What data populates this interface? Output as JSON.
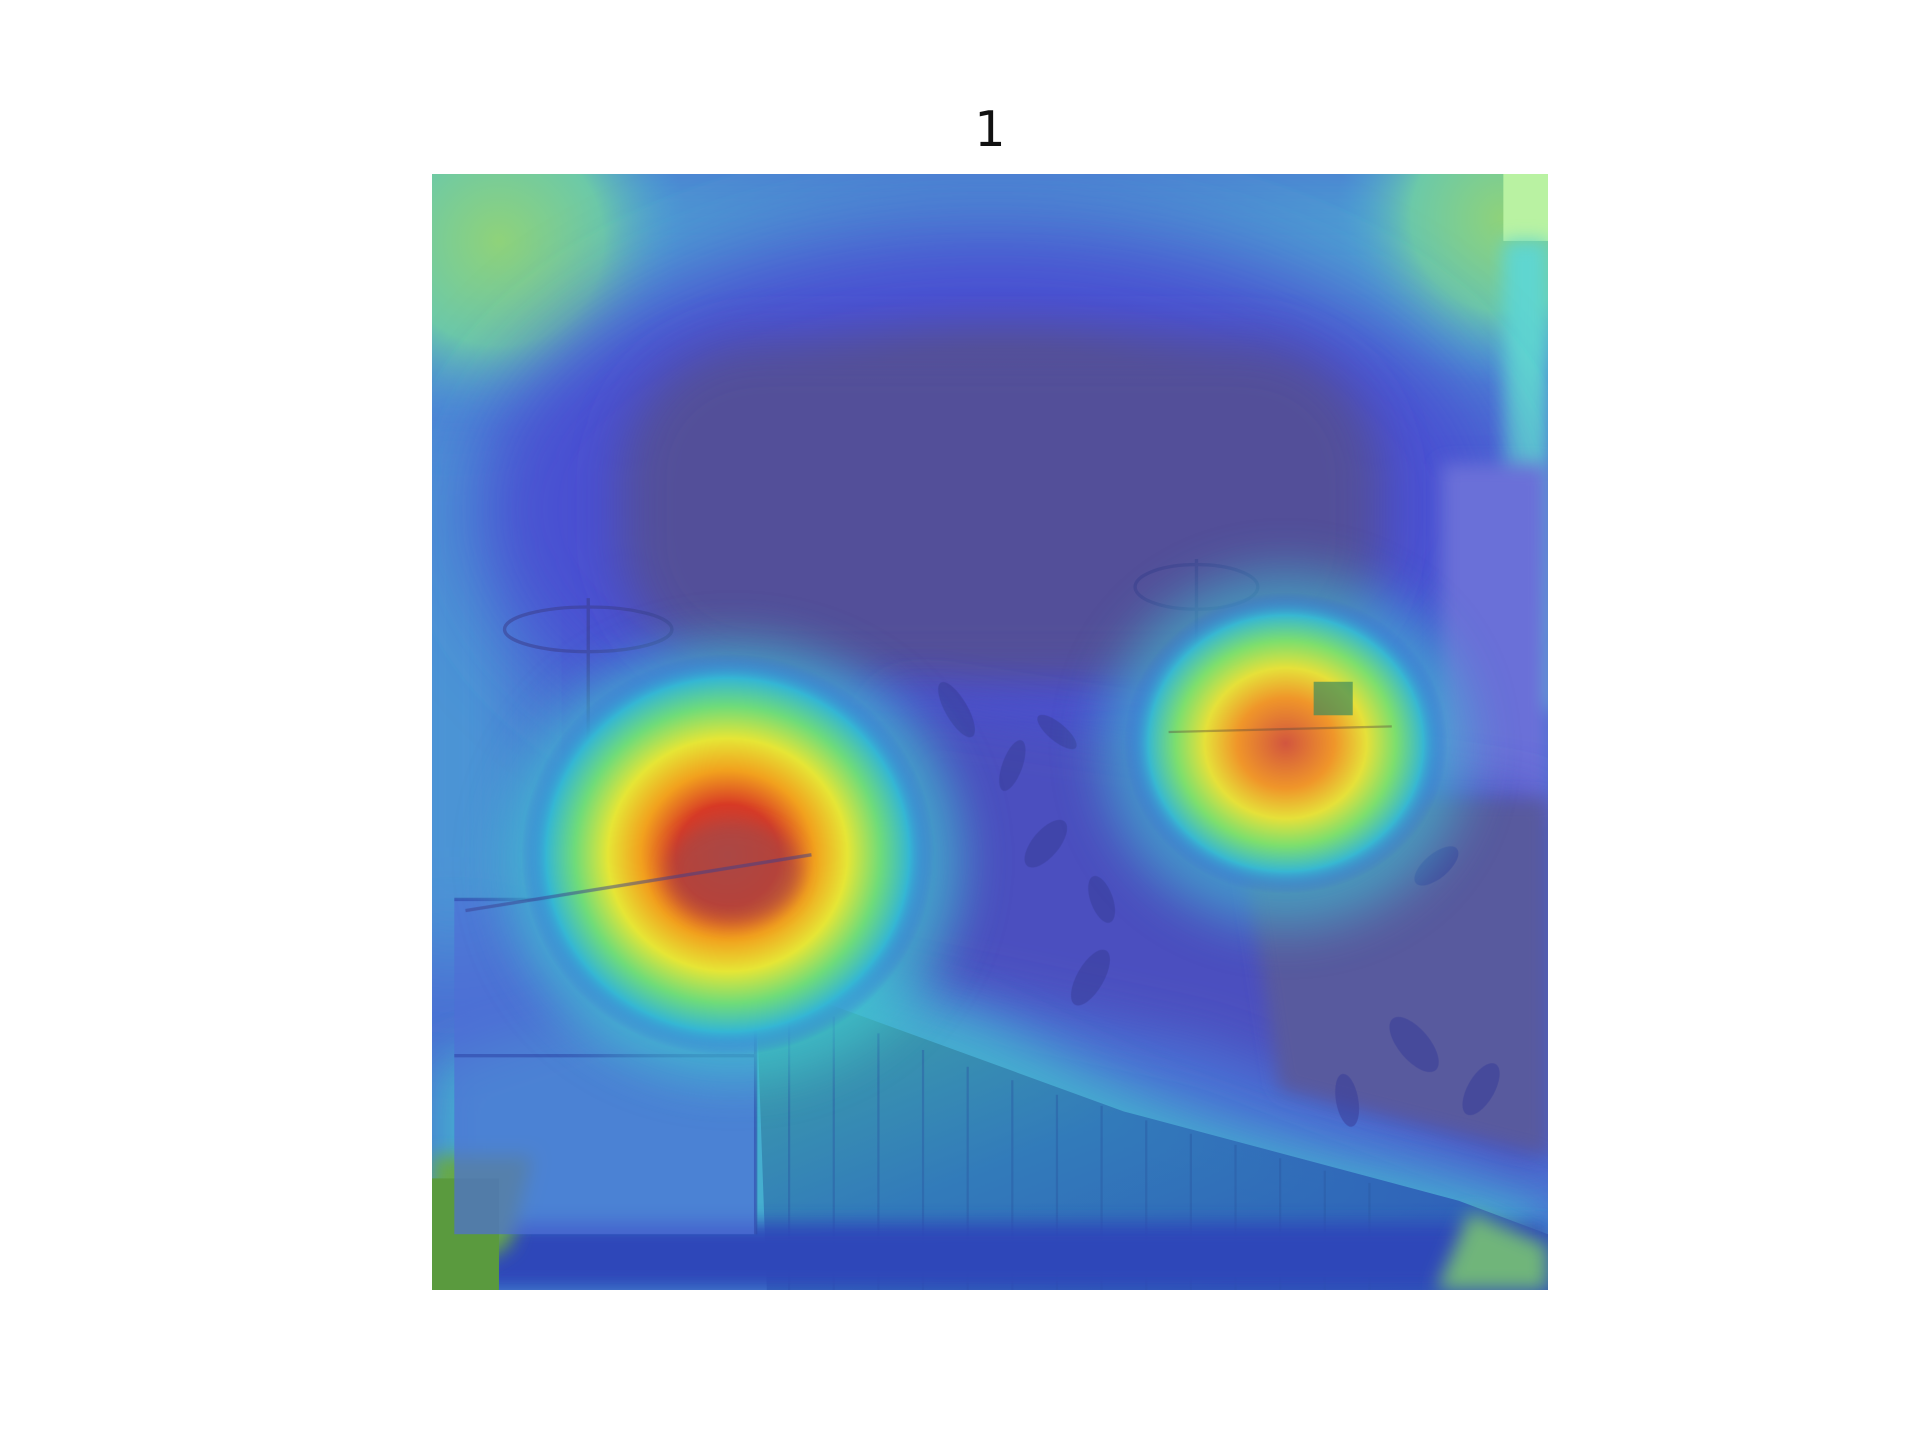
{
  "figure": {
    "title": "1",
    "description_type": "attention heatmap overlaid on bedroom photo"
  },
  "heatmap": {
    "colormap": "jet",
    "hotspots": [
      {
        "name": "left-lamp",
        "intensity": 1.0
      },
      {
        "name": "right-lamp",
        "intensity": 0.8
      }
    ]
  }
}
